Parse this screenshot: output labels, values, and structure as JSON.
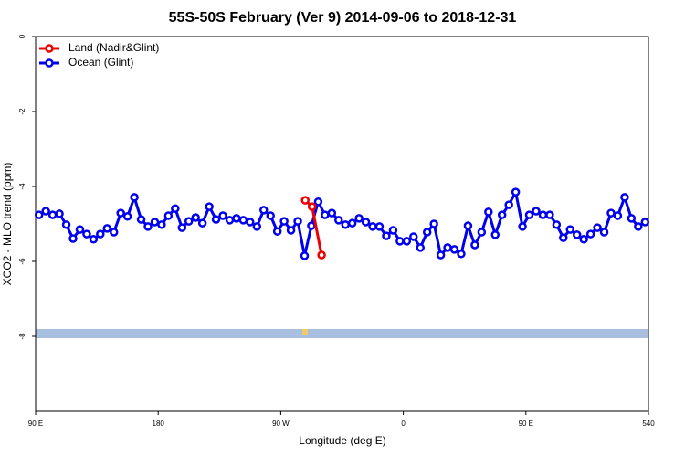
{
  "chart_data": {
    "type": "line",
    "title": "55S-50S February (Ver 9)   2014-09-06 to 2018-12-31",
    "x_label": "Longitude (deg E)",
    "y_label": "XCO2 - MLO trend (ppm)",
    "xlim": [
      90,
      540
    ],
    "ylim": [
      -10,
      0
    ],
    "xticks": [
      {
        "value": 90,
        "label": "90 E"
      },
      180,
      {
        "value": 270,
        "label": "90 W"
      },
      {
        "value": 360,
        "label": "0"
      },
      {
        "value": 450,
        "label": "90 E"
      },
      540
    ],
    "yticks": [
      0,
      -2,
      -4,
      -6,
      -8
    ],
    "grid": false,
    "legend": "top-left",
    "series": [
      {
        "name": "Land (Nadir&Glint)",
        "color": "#ee0000",
        "x": [
          288,
          293,
          300
        ],
        "values": [
          -4.37,
          -4.54,
          -5.83
        ]
      },
      {
        "name": "Ocean (Glint)",
        "color": "#0000ee",
        "x": [
          92.5,
          97.5,
          102.5,
          107.5,
          112.5,
          117.5,
          122.5,
          127.5,
          132.5,
          137.5,
          142.5,
          147.5,
          152.5,
          157.5,
          162.5,
          167.5,
          172.5,
          177.5,
          182.5,
          187.5,
          192.5,
          197.5,
          202.5,
          207.5,
          212.5,
          217.5,
          222.5,
          227.5,
          232.5,
          237.5,
          242.5,
          247.5,
          252.5,
          257.5,
          262.5,
          267.5,
          272.5,
          277.5,
          282.5,
          287.5,
          292.5,
          297.5,
          302.5,
          307.5,
          312.5,
          317.5,
          322.5,
          327.5,
          332.5,
          337.5,
          342.5,
          347.5,
          352.5,
          357.5,
          362.5,
          367.5,
          372.5,
          377.5,
          382.5,
          387.5,
          392.5,
          397.5,
          402.5,
          407.5,
          412.5,
          417.5,
          422.5,
          427.5,
          432.5,
          437.5,
          442.5,
          447.5,
          452.5,
          457.5,
          462.5,
          467.5,
          472.5,
          477.5,
          482.5,
          487.5,
          492.5,
          497.5,
          502.5,
          507.5,
          512.5,
          517.5,
          522.5,
          527.5,
          532.5,
          537.5
        ],
        "values": [
          -4.76,
          -4.66,
          -4.76,
          -4.73,
          -5.02,
          -5.39,
          -5.15,
          -5.27,
          -5.41,
          -5.27,
          -5.12,
          -5.22,
          -4.71,
          -4.8,
          -4.29,
          -4.88,
          -5.07,
          -4.95,
          -5.02,
          -4.78,
          -4.59,
          -5.1,
          -4.93,
          -4.83,
          -4.98,
          -4.54,
          -4.88,
          -4.78,
          -4.9,
          -4.85,
          -4.9,
          -4.95,
          -5.07,
          -4.63,
          -4.78,
          -5.2,
          -4.93,
          -5.17,
          -4.93,
          -5.85,
          -5.05,
          -4.41,
          -4.76,
          -4.71,
          -4.9,
          -5.02,
          -4.98,
          -4.85,
          -4.95,
          -5.07,
          -5.07,
          -5.32,
          -5.17,
          -5.46,
          -5.46,
          -5.34,
          -5.63,
          -5.22,
          -5.0,
          -5.83,
          -5.63,
          -5.68,
          -5.8,
          -5.05,
          -5.56,
          -5.22,
          -4.68,
          -5.29,
          -4.76,
          -4.49,
          -4.15,
          -5.07,
          -4.76,
          -4.66,
          -4.76,
          -4.76,
          -5.02,
          -5.37,
          -5.15,
          -5.29,
          -5.41,
          -5.27,
          -5.1,
          -5.22,
          -4.71,
          -4.78,
          -4.29,
          -4.85,
          -5.07,
          -4.95
        ]
      }
    ]
  }
}
